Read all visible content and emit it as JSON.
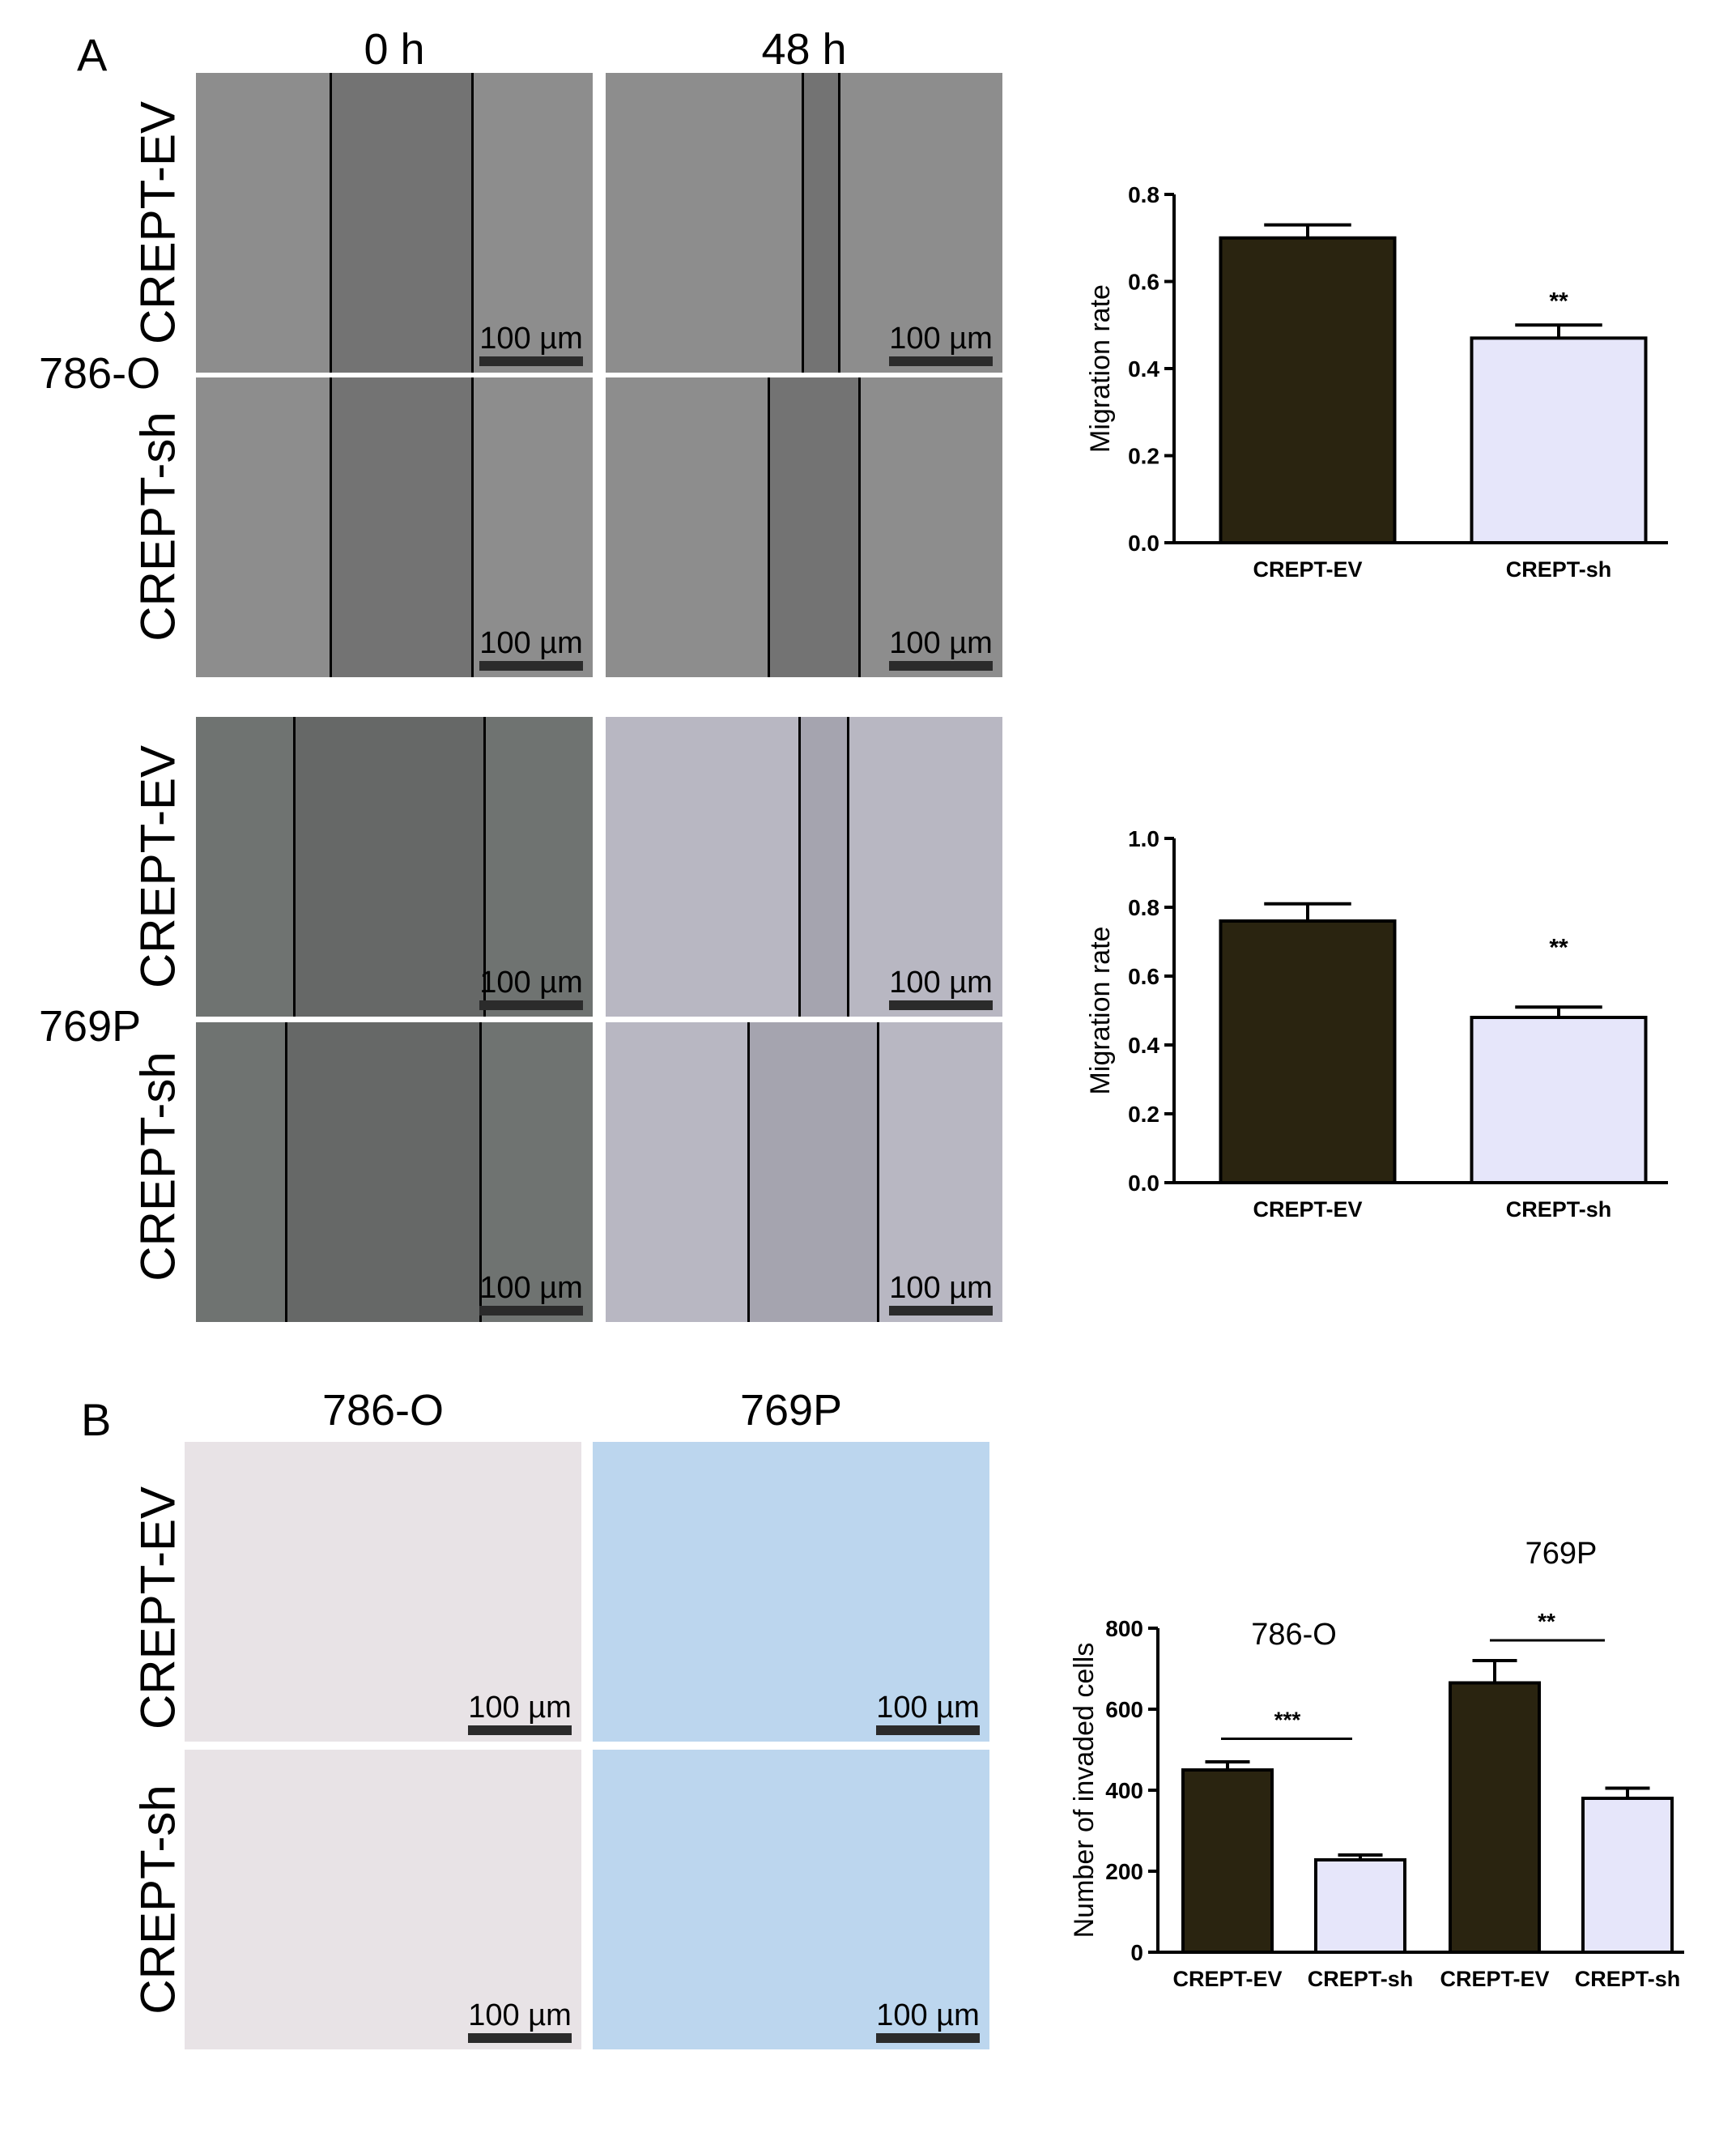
{
  "panel_a": {
    "letter": "A",
    "columns": [
      "0 h",
      "48 h"
    ],
    "cell_lines": [
      "786-O",
      "769P"
    ],
    "rows": [
      "CREPT-EV",
      "CREPT-sh"
    ],
    "scale_label": "100 µm"
  },
  "panel_b": {
    "letter": "B",
    "columns": [
      "786-O",
      "769P"
    ],
    "rows": [
      "CREPT-EV",
      "CREPT-sh"
    ],
    "scale_label": "100 µm"
  },
  "colors": {
    "ev_bar": "#2a2410",
    "sh_bar": "#e6e6fa",
    "micro_7860": "#8d8d8d",
    "micro_769p_0h": "#6f7371",
    "micro_769p_48h": "#b8b7c2",
    "transwell_786o": "#e8e3e6",
    "transwell_769p": "#bcd6ee"
  },
  "chart_data": [
    {
      "type": "bar",
      "ylabel": "Migration rate",
      "categories": [
        "CREPT-EV",
        "CREPT-sh"
      ],
      "values": [
        0.7,
        0.47
      ],
      "errors": [
        0.03,
        0.03
      ],
      "ylim": [
        0,
        0.8
      ],
      "yticks": [
        "0.0",
        "0.2",
        "0.4",
        "0.6",
        "0.8"
      ],
      "annotations": [
        "**"
      ]
    },
    {
      "type": "bar",
      "ylabel": "Migration rate",
      "categories": [
        "CREPT-EV",
        "CREPT-sh"
      ],
      "values": [
        0.76,
        0.48
      ],
      "errors": [
        0.05,
        0.03
      ],
      "ylim": [
        0,
        1.0
      ],
      "yticks": [
        "0.0",
        "0.2",
        "0.4",
        "0.6",
        "0.8",
        "1.0"
      ],
      "annotations": [
        "**"
      ]
    },
    {
      "type": "bar",
      "ylabel": "Number of invaded cells",
      "categories": [
        "CREPT-EV",
        "CREPT-sh",
        "CREPT-EV",
        "CREPT-sh"
      ],
      "groups": [
        "786-O",
        "769P"
      ],
      "values": [
        450,
        228,
        665,
        380
      ],
      "errors": [
        20,
        12,
        55,
        25
      ],
      "ylim": [
        0,
        800
      ],
      "yticks": [
        "0",
        "200",
        "400",
        "600",
        "800"
      ],
      "annotations": [
        "***",
        "**"
      ]
    }
  ]
}
